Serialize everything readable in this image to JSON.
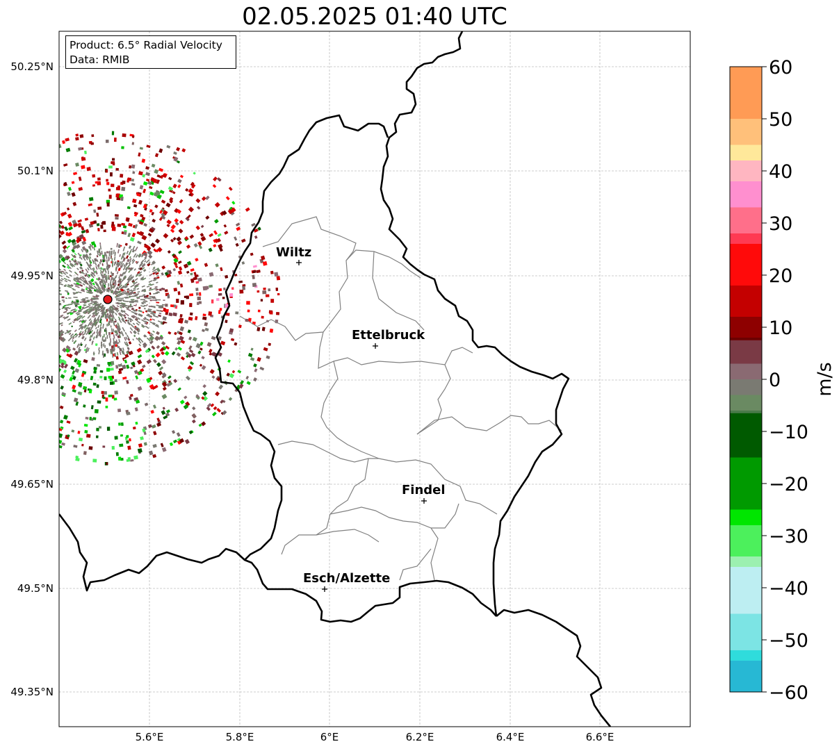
{
  "title": "02.05.2025 01:40 UTC",
  "info": {
    "product": "Product: 6.5° Radial Velocity",
    "data_source": "Data: RMIB"
  },
  "axes": {
    "lon_ticks": [
      "5.6°E",
      "5.8°E",
      "6°E",
      "6.2°E",
      "6.4°E",
      "6.6°E"
    ],
    "lat_ticks": [
      "50.25°N",
      "50.1°N",
      "49.95°N",
      "49.8°N",
      "49.65°N",
      "49.5°N",
      "49.35°N"
    ]
  },
  "cities": [
    {
      "name": "Wiltz"
    },
    {
      "name": "Ettelbruck"
    },
    {
      "name": "Findel"
    },
    {
      "name": "Esch/Alzette"
    }
  ],
  "colorbar": {
    "unit": "m/s",
    "ticks": [
      "60",
      "50",
      "40",
      "30",
      "20",
      "10",
      "0",
      "−10",
      "−20",
      "−30",
      "−40",
      "−50",
      "−60"
    ],
    "min": -60,
    "max": 60,
    "stops": [
      {
        "v": 60,
        "c": "#ff9b55"
      },
      {
        "v": 50,
        "c": "#ffc07a"
      },
      {
        "v": 45,
        "c": "#ffe89a"
      },
      {
        "v": 42,
        "c": "#ffb6c1"
      },
      {
        "v": 38,
        "c": "#ff8fcf"
      },
      {
        "v": 33,
        "c": "#ff6f8a"
      },
      {
        "v": 28,
        "c": "#ff3a52"
      },
      {
        "v": 26,
        "c": "#ff0a0a"
      },
      {
        "v": 18,
        "c": "#c40000"
      },
      {
        "v": 12,
        "c": "#8e0000"
      },
      {
        "v": 8,
        "c": "#6c0000"
      },
      {
        "v": 7.5,
        "c": "#7a3a45"
      },
      {
        "v": 3,
        "c": "#8a6a72"
      },
      {
        "v": 0,
        "c": "#7a7a72"
      },
      {
        "v": -3,
        "c": "#6a8a62"
      },
      {
        "v": -6,
        "c": "#4a7a4a"
      },
      {
        "v": -6.5,
        "c": "#005a00"
      },
      {
        "v": -15,
        "c": "#009a00"
      },
      {
        "v": -25,
        "c": "#00e600"
      },
      {
        "v": -28,
        "c": "#4cf05c"
      },
      {
        "v": -34,
        "c": "#9cf0b0"
      },
      {
        "v": -36,
        "c": "#bdeef2"
      },
      {
        "v": -45,
        "c": "#7ce4e4"
      },
      {
        "v": -52,
        "c": "#2fdcdc"
      },
      {
        "v": -54,
        "c": "#27b8d4"
      },
      {
        "v": -60,
        "c": "#1f7fc4"
      }
    ]
  },
  "radar": {
    "site_color": "#e31a1c"
  }
}
